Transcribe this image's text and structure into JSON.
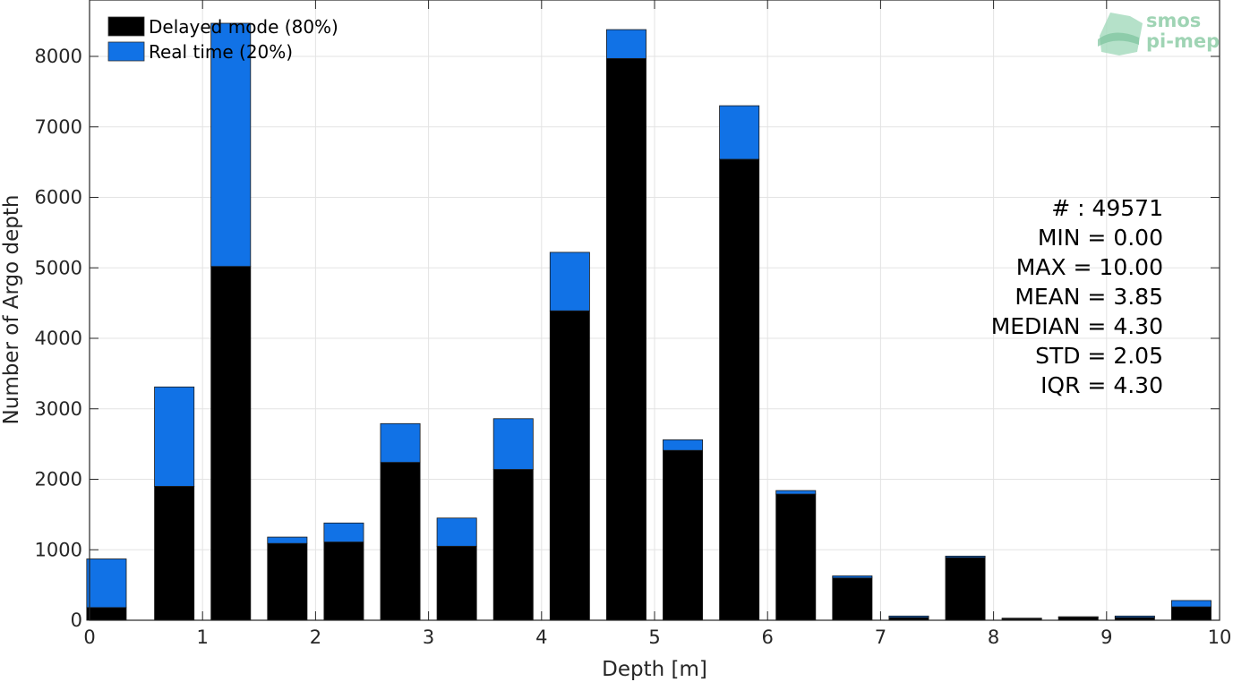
{
  "chart_data": {
    "type": "bar",
    "stacked": true,
    "xlabel": "Depth [m]",
    "ylabel": "Number of Argo depth",
    "xlim": [
      0,
      10
    ],
    "ylim": [
      0,
      8800
    ],
    "xticks": [
      0,
      1,
      2,
      3,
      4,
      5,
      6,
      7,
      8,
      9,
      10
    ],
    "yticks": [
      0,
      1000,
      2000,
      3000,
      4000,
      5000,
      6000,
      7000,
      8000
    ],
    "grid": true,
    "legend_position": "top-left",
    "bin_centers": [
      0.15,
      0.75,
      1.25,
      1.75,
      2.25,
      2.75,
      3.25,
      3.75,
      4.25,
      4.75,
      5.25,
      5.75,
      6.25,
      6.75,
      7.25,
      7.75,
      8.25,
      8.75,
      9.25,
      9.75
    ],
    "series": [
      {
        "name": "Delayed mode (80%)",
        "color": "#000000",
        "values": [
          180,
          1900,
          5020,
          1090,
          1110,
          2240,
          1050,
          2140,
          4390,
          7970,
          2410,
          6540,
          1790,
          600,
          40,
          890,
          20,
          40,
          40,
          190
        ]
      },
      {
        "name": "Real time (20%)",
        "color": "#1172e6",
        "values": [
          690,
          1410,
          3450,
          90,
          270,
          550,
          400,
          720,
          830,
          410,
          150,
          760,
          50,
          30,
          20,
          20,
          10,
          10,
          20,
          90
        ]
      }
    ],
    "stats": [
      "# : 49571",
      "MIN = 0.00",
      "MAX =  10.00",
      "MEAN = 3.85",
      "MEDIAN = 4.30",
      "STD = 2.05",
      "IQR = 4.30"
    ]
  },
  "logo": {
    "line1": "smos",
    "line2": "pi-mep"
  }
}
